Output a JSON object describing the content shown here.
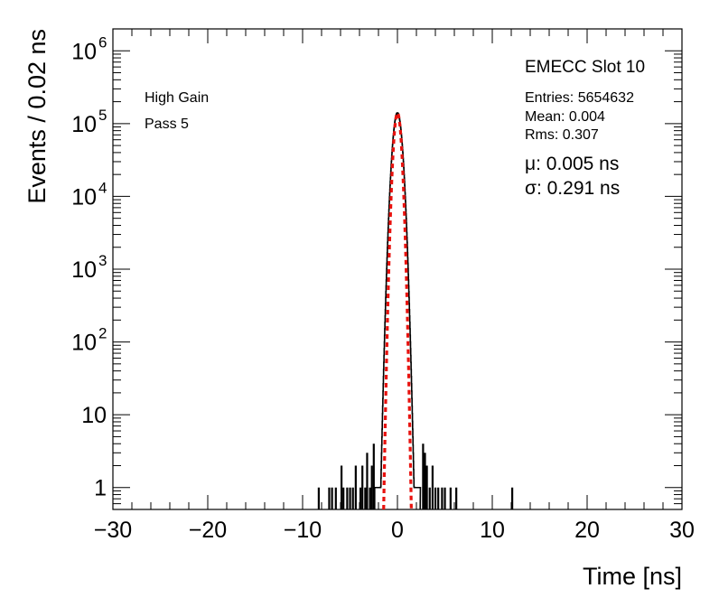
{
  "chart_data": {
    "type": "histogram",
    "title": "",
    "xlabel": "Time [ns]",
    "ylabel": "Events / 0.02 ns",
    "xlim": [
      -30,
      30
    ],
    "ylim": [
      0.5,
      2000000
    ],
    "yscale": "log",
    "grid": false,
    "x_ticks": [
      -30,
      -20,
      -10,
      0,
      10,
      20,
      30
    ],
    "x_tick_labels": [
      "−30",
      "−20",
      "−10",
      "0",
      "10",
      "20",
      "30"
    ],
    "y_ticks": [
      {
        "value": 1,
        "base": "1",
        "exp": ""
      },
      {
        "value": 10,
        "base": "10",
        "exp": ""
      },
      {
        "value": 100,
        "base": "10",
        "exp": "2"
      },
      {
        "value": 1000,
        "base": "10",
        "exp": "3"
      },
      {
        "value": 10000,
        "base": "10",
        "exp": "4"
      },
      {
        "value": 100000,
        "base": "10",
        "exp": "5"
      },
      {
        "value": 1000000,
        "base": "10",
        "exp": "6"
      }
    ],
    "annotations_left": [
      "High Gain",
      "Pass 5"
    ],
    "stats": {
      "name": "EMECC Slot 10",
      "entries": "Entries: 5654632",
      "mean": "Mean: 0.004",
      "rms": "Rms: 0.307"
    },
    "fit": {
      "mu_text": "μ: 0.005 ns",
      "sigma_text": "σ: 0.291 ns",
      "mu": 0.005,
      "sigma": 0.291,
      "peak": 140000,
      "color": "#e8120e"
    },
    "series": [
      {
        "style": "histogram",
        "color": "#000000",
        "core": {
          "peak": 140000,
          "sigma": 0.36,
          "range": [
            -2.4,
            2.4
          ]
        },
        "tail_spikes": [
          {
            "x": -8.4,
            "y": 1
          },
          {
            "x": -7.3,
            "y": 1
          },
          {
            "x": -7.0,
            "y": 1
          },
          {
            "x": -6.6,
            "y": 1
          },
          {
            "x": -6.0,
            "y": 2
          },
          {
            "x": -5.8,
            "y": 1
          },
          {
            "x": -5.4,
            "y": 1
          },
          {
            "x": -5.1,
            "y": 1
          },
          {
            "x": -4.8,
            "y": 1
          },
          {
            "x": -4.5,
            "y": 2
          },
          {
            "x": -4.0,
            "y": 1
          },
          {
            "x": -3.8,
            "y": 2
          },
          {
            "x": -3.5,
            "y": 1
          },
          {
            "x": -3.3,
            "y": 3
          },
          {
            "x": -3.0,
            "y": 1
          },
          {
            "x": -2.8,
            "y": 2
          },
          {
            "x": -2.6,
            "y": 4
          },
          {
            "x": 2.6,
            "y": 4
          },
          {
            "x": 2.8,
            "y": 3
          },
          {
            "x": 3.0,
            "y": 2
          },
          {
            "x": 3.3,
            "y": 1
          },
          {
            "x": 3.6,
            "y": 2
          },
          {
            "x": 3.9,
            "y": 1
          },
          {
            "x": 4.2,
            "y": 1
          },
          {
            "x": 4.6,
            "y": 1
          },
          {
            "x": 4.9,
            "y": 1
          },
          {
            "x": 5.5,
            "y": 1
          },
          {
            "x": 6.1,
            "y": 1
          },
          {
            "x": 12.0,
            "y": 1
          }
        ]
      }
    ]
  }
}
